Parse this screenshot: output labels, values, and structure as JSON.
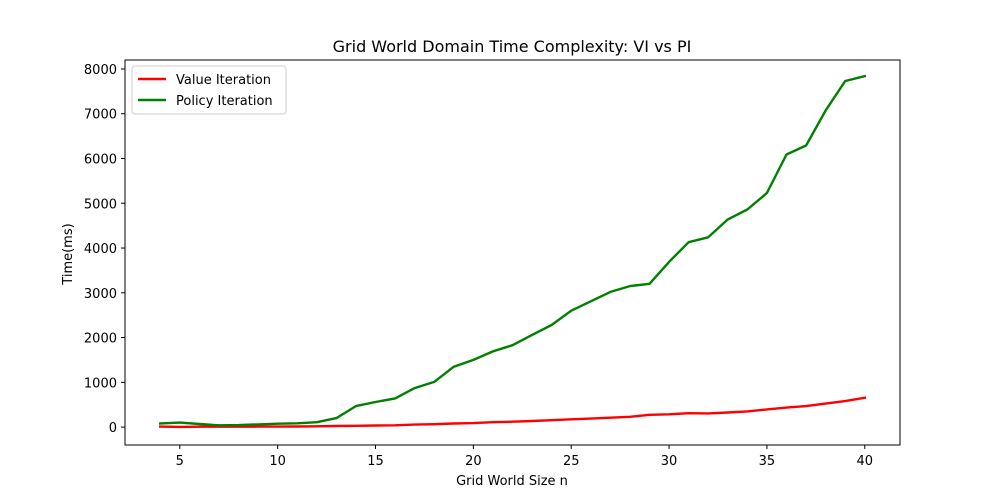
{
  "chart_data": {
    "type": "line",
    "title": "Grid World Domain Time Complexity: VI vs PI",
    "xlabel": "Grid World Size n",
    "ylabel": "Time(ms)",
    "xlim": [
      2.2,
      41.8
    ],
    "ylim": [
      -400,
      8200
    ],
    "xticks": [
      5,
      10,
      15,
      20,
      25,
      30,
      35,
      40
    ],
    "yticks": [
      0,
      1000,
      2000,
      3000,
      4000,
      5000,
      6000,
      7000,
      8000
    ],
    "grid": false,
    "legend": "top-left",
    "x": [
      4,
      5,
      6,
      7,
      8,
      9,
      10,
      11,
      12,
      13,
      14,
      15,
      16,
      17,
      18,
      19,
      20,
      21,
      22,
      23,
      24,
      25,
      26,
      27,
      28,
      29,
      30,
      31,
      32,
      33,
      34,
      35,
      36,
      37,
      38,
      39,
      40
    ],
    "series": [
      {
        "name": "Value Iteration",
        "color": "#ff0000",
        "values": [
          10,
          5,
          8,
          8,
          8,
          10,
          12,
          14,
          18,
          25,
          30,
          35,
          40,
          55,
          65,
          80,
          90,
          110,
          120,
          135,
          155,
          175,
          190,
          210,
          230,
          275,
          285,
          310,
          305,
          325,
          350,
          395,
          435,
          470,
          525,
          580,
          655
        ]
      },
      {
        "name": "Policy Iteration",
        "color": "#008000",
        "values": [
          80,
          100,
          70,
          40,
          45,
          60,
          75,
          85,
          110,
          200,
          470,
          560,
          640,
          870,
          1010,
          1350,
          1500,
          1690,
          1830,
          2060,
          2280,
          2600,
          2810,
          3020,
          3150,
          3200,
          3690,
          4130,
          4240,
          4640,
          4860,
          5230,
          6090,
          6290,
          7070,
          7730,
          7840
        ]
      }
    ]
  }
}
